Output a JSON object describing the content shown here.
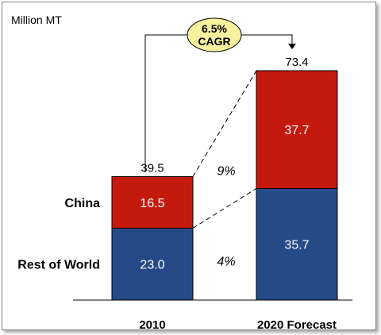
{
  "chart_data": {
    "type": "bar",
    "stacked": true,
    "unit_label": "Million MT",
    "categories": [
      "2010",
      "2020 Forecast"
    ],
    "series": [
      {
        "name": "Rest of World",
        "values": [
          23.0,
          35.7
        ],
        "labels": [
          "23.0",
          "35.7"
        ],
        "color": "#264a87"
      },
      {
        "name": "China",
        "values": [
          16.5,
          37.7
        ],
        "labels": [
          "16.5",
          "37.7"
        ],
        "color": "#c41a0e"
      }
    ],
    "totals": [
      39.5,
      73.4
    ],
    "total_labels": [
      "39.5",
      "73.4"
    ],
    "growth_rates": [
      {
        "series": "China",
        "label": "9%"
      },
      {
        "series": "Rest of World",
        "label": "4%"
      }
    ],
    "cagr_callout": {
      "line1": "6.5%",
      "line2": "CAGR",
      "fill": "#f8f19e"
    },
    "xlabel": "",
    "ylabel": "",
    "grid": false
  }
}
